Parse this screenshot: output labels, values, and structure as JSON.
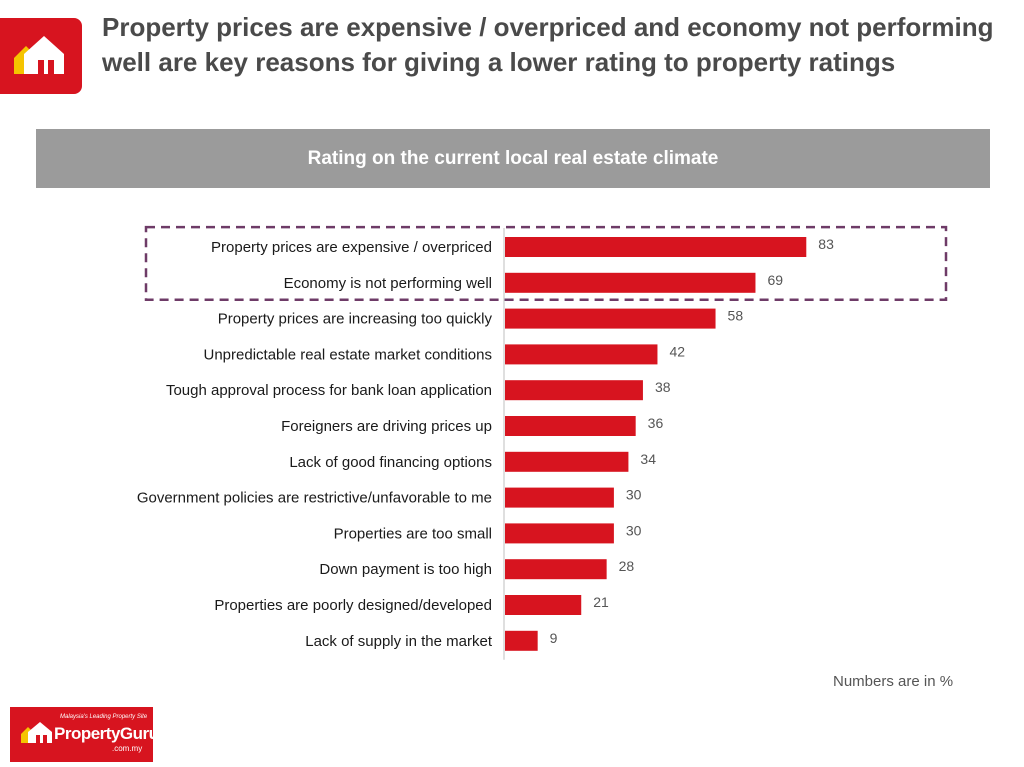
{
  "header": {
    "title": "Property prices are expensive / overpriced and economy not performing well are key reasons for giving a lower rating to property ratings"
  },
  "banner": {
    "text": "Rating on the current local real estate climate"
  },
  "footnote": "Numbers are in %",
  "logo": {
    "icon": "house-icon",
    "tagline": "Malaysia's Leading Property Site",
    "brand": "PropertyGuru",
    "domain": ".com.my"
  },
  "colors": {
    "bar": "#d7141f",
    "highlight_border": "#6e3b67",
    "banner": "#9b9b9b",
    "text": "#1a1a1a",
    "value_text": "#555555"
  },
  "chart_data": {
    "type": "bar",
    "orientation": "horizontal",
    "categories": [
      "Property prices are expensive / overpriced",
      "Economy is not performing well",
      "Property prices are increasing too quickly",
      "Unpredictable real estate market conditions",
      "Tough approval process for bank loan application",
      "Foreigners are driving prices up",
      "Lack of good financing options",
      "Government policies are restrictive/unfavorable to me",
      "Properties are too small",
      "Down payment is too high",
      "Properties are poorly designed/developed",
      "Lack of supply in the market"
    ],
    "values": [
      83,
      69,
      58,
      42,
      38,
      36,
      34,
      30,
      30,
      28,
      21,
      9
    ],
    "highlighted": [
      0,
      1
    ],
    "xlim": [
      0,
      100
    ],
    "value_labels": true,
    "grid": false
  }
}
